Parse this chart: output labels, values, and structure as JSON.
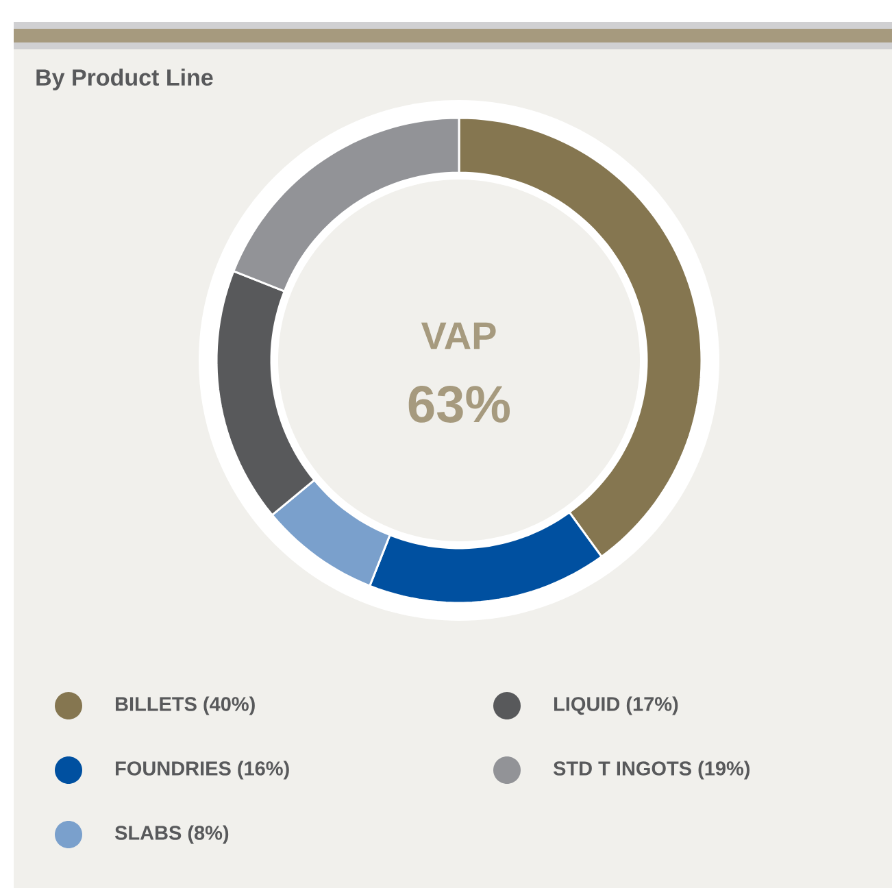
{
  "chart_data": {
    "type": "donut",
    "title": "By Product Line",
    "categories": [
      "BILLETS (40%)",
      "FOUNDRIES (16%)",
      "SLABS (8%)",
      "LIQUID (17%)",
      "STD T INGOTS (19%)"
    ],
    "values": [
      40,
      16,
      8,
      17,
      19
    ],
    "colors": [
      "#857650",
      "#0050a0",
      "#7aa0cc",
      "#58595b",
      "#929397"
    ],
    "annotations": [
      "VAP",
      "63%"
    ],
    "legend": "bottom"
  }
}
